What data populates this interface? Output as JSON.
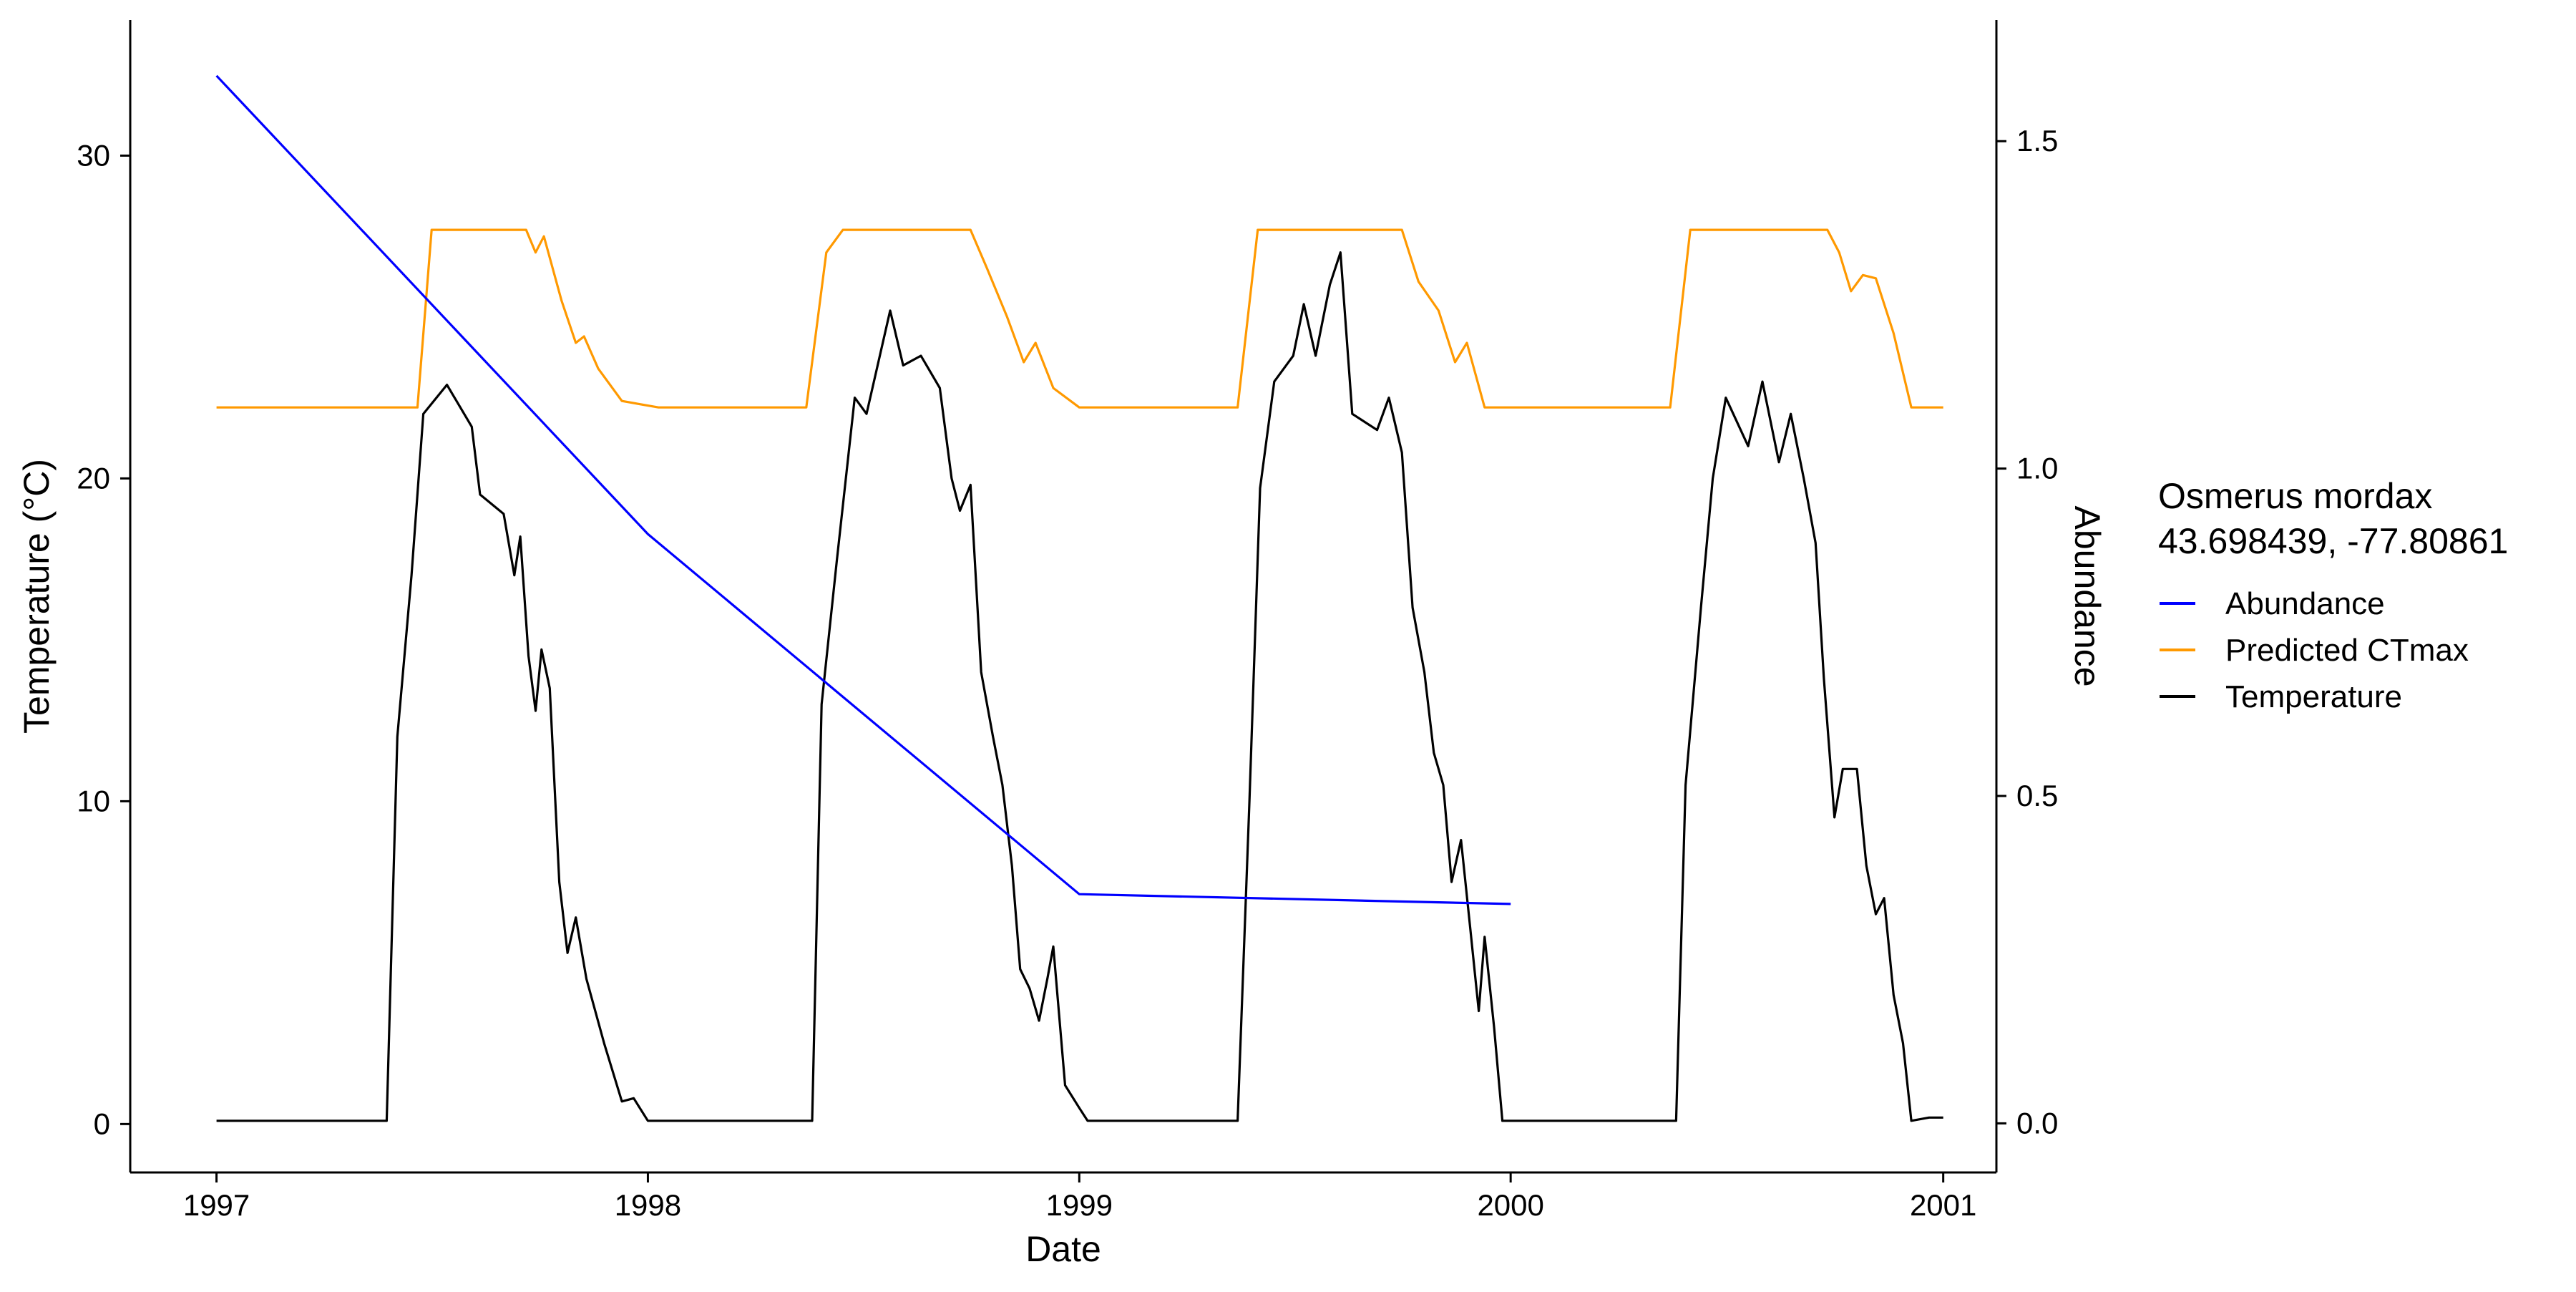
{
  "chart_data": {
    "type": "line",
    "xlabel": "Date",
    "ylabel": "Temperature (°C)",
    "y2label": "Abundance",
    "xlim": [
      "1996-10-20",
      "2001-02-15"
    ],
    "ylim": [
      -1.5,
      34.2
    ],
    "y2lim": [
      -0.075,
      1.685
    ],
    "x_ticks": [
      "1997",
      "1998",
      "1999",
      "2000",
      "2001"
    ],
    "y_ticks": [
      "0",
      "10",
      "20",
      "30"
    ],
    "y2_ticks": [
      "0.0",
      "0.5",
      "1.0",
      "1.5"
    ],
    "legend": {
      "title_line1": "Osmerus mordax",
      "title_line2": "43.698439, -77.80861",
      "position": "right",
      "entries": [
        "Abundance",
        "Predicted CTmax",
        "Temperature"
      ]
    },
    "colors": {
      "abundance": "#0000FF",
      "ctmax": "#FF9900",
      "temperature": "#000000",
      "y2_title": "#0000FF"
    },
    "series": [
      {
        "name": "Abundance",
        "axis": "right",
        "points": [
          [
            "1997-01-01",
            1.6
          ],
          [
            "1998-01-01",
            0.9
          ],
          [
            "1999-01-01",
            0.35
          ],
          [
            "2000-01-01",
            0.335
          ]
        ]
      },
      {
        "name": "Predicted CTmax",
        "axis": "left",
        "points": [
          [
            "1997-01-01",
            22.2
          ],
          [
            "1997-03-01",
            22.2
          ],
          [
            "1997-05-15",
            22.2
          ],
          [
            "1997-06-20",
            22.2
          ],
          [
            "1997-07-02",
            27.7
          ],
          [
            "1997-09-20",
            27.7
          ],
          [
            "1997-09-28",
            27.0
          ],
          [
            "1997-10-05",
            27.5
          ],
          [
            "1997-10-20",
            25.5
          ],
          [
            "1997-11-01",
            24.2
          ],
          [
            "1997-11-08",
            24.4
          ],
          [
            "1997-11-20",
            23.4
          ],
          [
            "1997-12-10",
            22.4
          ],
          [
            "1998-01-10",
            22.2
          ],
          [
            "1998-05-15",
            22.2
          ],
          [
            "1998-06-01",
            27.0
          ],
          [
            "1998-06-15",
            27.7
          ],
          [
            "1998-10-01",
            27.7
          ],
          [
            "1998-10-15",
            26.5
          ],
          [
            "1998-11-01",
            25.0
          ],
          [
            "1998-11-15",
            23.6
          ],
          [
            "1998-11-25",
            24.2
          ],
          [
            "1998-12-10",
            22.8
          ],
          [
            "1999-01-01",
            22.2
          ],
          [
            "1999-05-15",
            22.2
          ],
          [
            "1999-06-01",
            27.7
          ],
          [
            "1999-10-01",
            27.7
          ],
          [
            "1999-10-15",
            26.1
          ],
          [
            "1999-11-01",
            25.2
          ],
          [
            "1999-11-15",
            23.6
          ],
          [
            "1999-11-25",
            24.2
          ],
          [
            "1999-12-10",
            22.2
          ],
          [
            "2000-05-15",
            22.2
          ],
          [
            "2000-06-01",
            27.7
          ],
          [
            "2000-09-25",
            27.7
          ],
          [
            "2000-10-05",
            27.0
          ],
          [
            "2000-10-15",
            25.8
          ],
          [
            "2000-10-25",
            26.3
          ],
          [
            "2000-11-05",
            26.2
          ],
          [
            "2000-11-20",
            24.5
          ],
          [
            "2000-12-05",
            22.2
          ],
          [
            "2001-01-01",
            22.2
          ]
        ]
      },
      {
        "name": "Temperature",
        "axis": "left",
        "points": [
          [
            "1997-01-01",
            0.1
          ],
          [
            "1997-03-01",
            0.1
          ],
          [
            "1997-05-25",
            0.1
          ],
          [
            "1997-06-03",
            12.0
          ],
          [
            "1997-06-15",
            17.0
          ],
          [
            "1997-06-25",
            22.0
          ],
          [
            "1997-07-15",
            22.9
          ],
          [
            "1997-08-05",
            21.6
          ],
          [
            "1997-08-12",
            19.5
          ],
          [
            "1997-09-01",
            18.9
          ],
          [
            "1997-09-10",
            17.0
          ],
          [
            "1997-09-15",
            18.2
          ],
          [
            "1997-09-22",
            14.5
          ],
          [
            "1997-09-28",
            12.8
          ],
          [
            "1997-10-03",
            14.7
          ],
          [
            "1997-10-10",
            13.5
          ],
          [
            "1997-10-18",
            7.5
          ],
          [
            "1997-10-25",
            5.3
          ],
          [
            "1997-11-01",
            6.4
          ],
          [
            "1997-11-10",
            4.5
          ],
          [
            "1997-11-25",
            2.5
          ],
          [
            "1997-12-10",
            0.7
          ],
          [
            "1997-12-20",
            0.8
          ],
          [
            "1998-01-01",
            0.1
          ],
          [
            "1998-02-15",
            0.1
          ],
          [
            "1998-05-20",
            0.1
          ],
          [
            "1998-05-28",
            13.0
          ],
          [
            "1998-06-10",
            17.5
          ],
          [
            "1998-06-25",
            22.5
          ],
          [
            "1998-07-05",
            22.0
          ],
          [
            "1998-07-25",
            25.2
          ],
          [
            "1998-08-05",
            23.5
          ],
          [
            "1998-08-20",
            23.8
          ],
          [
            "1998-09-05",
            22.8
          ],
          [
            "1998-09-15",
            20.0
          ],
          [
            "1998-09-22",
            19.0
          ],
          [
            "1998-10-01",
            19.8
          ],
          [
            "1998-10-10",
            14.0
          ],
          [
            "1998-10-20",
            12.0
          ],
          [
            "1998-10-28",
            10.5
          ],
          [
            "1998-11-05",
            8.0
          ],
          [
            "1998-11-12",
            4.8
          ],
          [
            "1998-11-20",
            4.2
          ],
          [
            "1998-11-28",
            3.2
          ],
          [
            "1998-12-05",
            4.5
          ],
          [
            "1998-12-10",
            5.5
          ],
          [
            "1998-12-20",
            1.2
          ],
          [
            "1999-01-01",
            0.5
          ],
          [
            "1999-01-08",
            0.1
          ],
          [
            "1999-05-15",
            0.1
          ],
          [
            "1999-05-25",
            10.0
          ],
          [
            "1999-06-03",
            19.7
          ],
          [
            "1999-06-15",
            23.0
          ],
          [
            "1999-07-01",
            23.8
          ],
          [
            "1999-07-10",
            25.4
          ],
          [
            "1999-07-20",
            23.8
          ],
          [
            "1999-08-01",
            26.0
          ],
          [
            "1999-08-10",
            27.0
          ],
          [
            "1999-08-20",
            22.0
          ],
          [
            "1999-09-10",
            21.5
          ],
          [
            "1999-09-20",
            22.5
          ],
          [
            "1999-10-01",
            20.8
          ],
          [
            "1999-10-10",
            16.0
          ],
          [
            "1999-10-20",
            14.0
          ],
          [
            "1999-10-28",
            11.5
          ],
          [
            "1999-11-05",
            10.5
          ],
          [
            "1999-11-12",
            7.5
          ],
          [
            "1999-11-20",
            8.8
          ],
          [
            "1999-11-28",
            6.0
          ],
          [
            "1999-12-05",
            3.5
          ],
          [
            "1999-12-10",
            5.8
          ],
          [
            "1999-12-18",
            3.0
          ],
          [
            "1999-12-25",
            0.1
          ],
          [
            "2000-05-20",
            0.1
          ],
          [
            "2000-05-28",
            10.5
          ],
          [
            "2000-06-10",
            16.0
          ],
          [
            "2000-06-20",
            20.0
          ],
          [
            "2000-07-01",
            22.5
          ],
          [
            "2000-07-20",
            21.0
          ],
          [
            "2000-08-01",
            23.0
          ],
          [
            "2000-08-15",
            20.5
          ],
          [
            "2000-08-25",
            22.0
          ],
          [
            "2000-09-05",
            20.0
          ],
          [
            "2000-09-15",
            18.0
          ],
          [
            "2000-09-22",
            13.8
          ],
          [
            "2000-10-01",
            9.5
          ],
          [
            "2000-10-08",
            11.0
          ],
          [
            "2000-10-20",
            11.0
          ],
          [
            "2000-10-28",
            8.0
          ],
          [
            "2000-11-05",
            6.5
          ],
          [
            "2000-11-12",
            7.0
          ],
          [
            "2000-11-20",
            4.0
          ],
          [
            "2000-11-28",
            2.5
          ],
          [
            "2000-12-05",
            0.1
          ],
          [
            "2000-12-20",
            0.2
          ],
          [
            "2001-01-01",
            0.2
          ]
        ]
      }
    ]
  }
}
